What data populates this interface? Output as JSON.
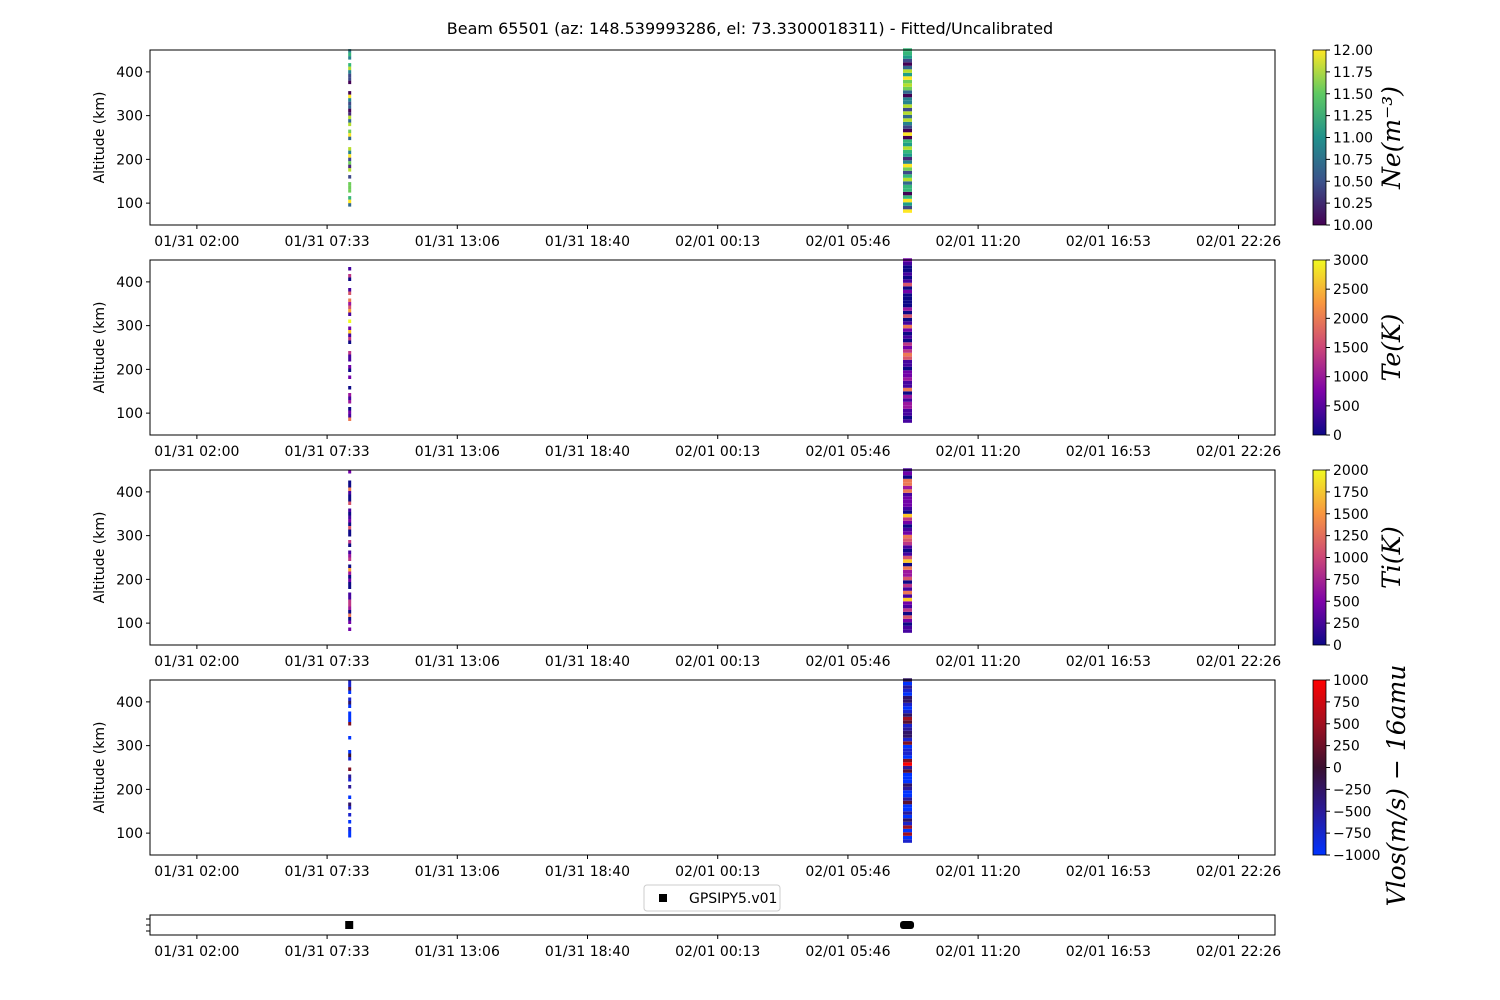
{
  "chart_data": {
    "type": "heatmap",
    "title": "Beam 65501 (az: 148.539993286, el: 73.3300018311) - Fitted/Uncalibrated",
    "x_tick_labels": [
      "01/31 02:00",
      "01/31 07:33",
      "01/31 13:06",
      "01/31 18:40",
      "02/01 00:13",
      "02/01 05:46",
      "02/01 11:20",
      "02/01 16:53",
      "02/01 22:26"
    ],
    "x_tick_hours": [
      0,
      5.556,
      11.111,
      16.667,
      22.222,
      27.778,
      33.333,
      38.889,
      44.444
    ],
    "xlim_hours": [
      -2.0,
      46.0
    ],
    "ylabel": "Altitude (km)",
    "ylim": [
      50,
      450
    ],
    "y_ticks": [
      100,
      200,
      300,
      400
    ],
    "data_bursts_hours": [
      6.5,
      30.3
    ],
    "panels": [
      {
        "id": "ne",
        "colorbar_label": "Ne(m⁻³)",
        "colormap": "viridis",
        "clim": [
          10.0,
          12.0
        ],
        "cb_ticks": [
          "10.00",
          "10.25",
          "10.50",
          "10.75",
          "11.00",
          "11.25",
          "11.50",
          "11.75",
          "12.00"
        ],
        "cb_tick_values": [
          10.0,
          10.25,
          10.5,
          10.75,
          11.0,
          11.25,
          11.5,
          11.75,
          12.0
        ]
      },
      {
        "id": "te",
        "colorbar_label": "Te(K)",
        "colormap": "plasma",
        "clim": [
          0,
          3000
        ],
        "cb_ticks": [
          "0",
          "500",
          "1000",
          "1500",
          "2000",
          "2500",
          "3000"
        ],
        "cb_tick_values": [
          0,
          500,
          1000,
          1500,
          2000,
          2500,
          3000
        ]
      },
      {
        "id": "ti",
        "colorbar_label": "Ti(K)",
        "colormap": "plasma",
        "clim": [
          0,
          2000
        ],
        "cb_ticks": [
          "0",
          "250",
          "500",
          "750",
          "1000",
          "1250",
          "1500",
          "1750",
          "2000"
        ],
        "cb_tick_values": [
          0,
          250,
          500,
          750,
          1000,
          1250,
          1500,
          1750,
          2000
        ]
      },
      {
        "id": "vlos",
        "colorbar_label": "Vlos(m/s) − 16amu",
        "colormap": "bluered",
        "clim": [
          -1000,
          1000
        ],
        "cb_ticks": [
          "−1000",
          "−750",
          "−500",
          "−250",
          "0",
          "250",
          "500",
          "750",
          "1000"
        ],
        "cb_tick_values": [
          -1000,
          -750,
          -500,
          -250,
          0,
          250,
          500,
          750,
          1000
        ]
      }
    ],
    "legend": {
      "label": "GPSIPY5.v01",
      "placement": "upper center"
    }
  },
  "colors": {
    "axis": "#000000",
    "legend_marker": "#000000"
  }
}
